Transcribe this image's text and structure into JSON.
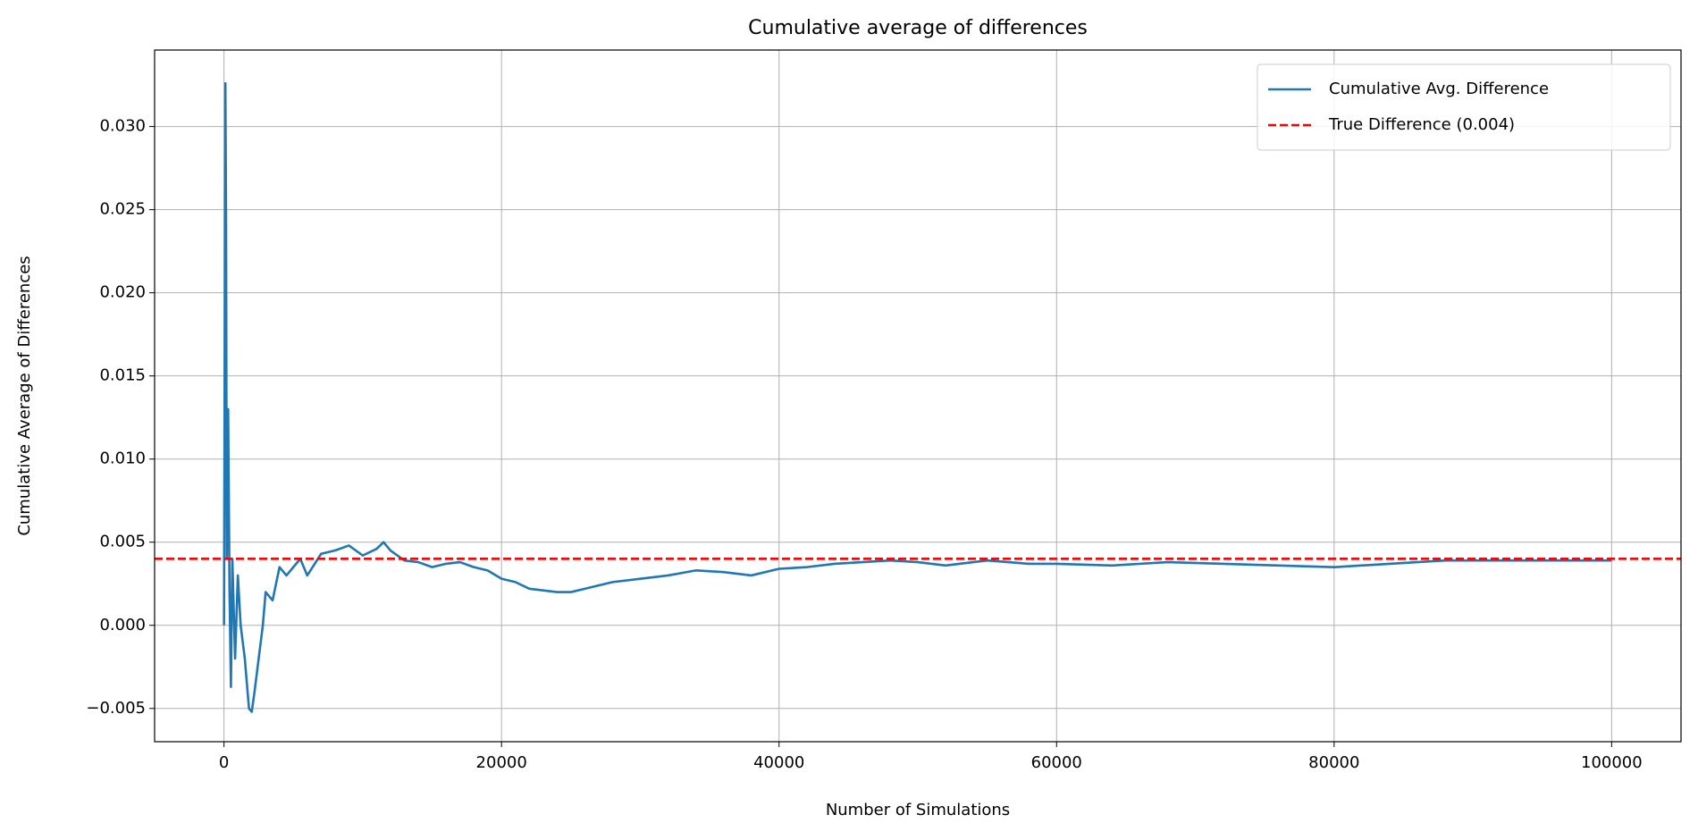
{
  "chart_data": {
    "type": "line",
    "title": "Cumulative average of differences",
    "xlabel": "Number of Simulations",
    "ylabel": "Cumulative Average of Differences",
    "x": [
      1,
      50,
      100,
      150,
      200,
      300,
      400,
      500,
      600,
      800,
      1000,
      1200,
      1500,
      1800,
      2000,
      2200,
      2500,
      2800,
      3000,
      3500,
      4000,
      4500,
      5000,
      5500,
      6000,
      7000,
      8000,
      9000,
      10000,
      11000,
      11500,
      12000,
      13000,
      14000,
      15000,
      16000,
      17000,
      18000,
      19000,
      20000,
      21000,
      22000,
      23000,
      24000,
      25000,
      26000,
      27000,
      28000,
      30000,
      32000,
      34000,
      36000,
      38000,
      40000,
      42000,
      44000,
      46000,
      48000,
      50000,
      52000,
      55000,
      58000,
      60000,
      64000,
      68000,
      72000,
      76000,
      80000,
      84000,
      88000,
      92000,
      96000,
      100000
    ],
    "series": [
      {
        "name": "Cumulative Avg. Difference",
        "color": "#1f77b4",
        "values": [
          0,
          0.016,
          0.0326,
          0.024,
          0.004,
          0.013,
          0.002,
          -0.0037,
          0.004,
          -0.002,
          0.003,
          0.0,
          -0.002,
          -0.005,
          -0.0052,
          -0.004,
          -0.002,
          0.0,
          0.002,
          0.0015,
          0.0035,
          0.003,
          0.0035,
          0.004,
          0.003,
          0.0043,
          0.0045,
          0.0048,
          0.0042,
          0.0046,
          0.005,
          0.0045,
          0.0039,
          0.0038,
          0.0035,
          0.0037,
          0.0038,
          0.0035,
          0.0033,
          0.0028,
          0.0026,
          0.0022,
          0.0021,
          0.002,
          0.002,
          0.0022,
          0.0024,
          0.0026,
          0.0028,
          0.003,
          0.0033,
          0.0032,
          0.003,
          0.0034,
          0.0035,
          0.0037,
          0.0038,
          0.0039,
          0.0038,
          0.0036,
          0.0039,
          0.0037,
          0.0037,
          0.0036,
          0.0038,
          0.0037,
          0.0036,
          0.0035,
          0.0037,
          0.0039,
          0.0039,
          0.0039,
          0.0039
        ]
      }
    ],
    "hlines": [
      {
        "name": "True Difference (0.004)",
        "value": 0.004,
        "color": "#ff0000",
        "dash": true
      }
    ],
    "xlim": [
      -5000,
      105000
    ],
    "ylim": [
      -0.007,
      0.0346
    ],
    "xticks": [
      0,
      20000,
      40000,
      60000,
      80000,
      100000
    ],
    "yticks": [
      {
        "value": -0.005,
        "label": "−0.005"
      },
      {
        "value": 0,
        "label": "0.000"
      },
      {
        "value": 0.005,
        "label": "0.005"
      },
      {
        "value": 0.01,
        "label": "0.010"
      },
      {
        "value": 0.015,
        "label": "0.015"
      },
      {
        "value": 0.02,
        "label": "0.020"
      },
      {
        "value": 0.025,
        "label": "0.025"
      },
      {
        "value": 0.03,
        "label": "0.030"
      }
    ],
    "grid": true,
    "legend": "upper right"
  }
}
